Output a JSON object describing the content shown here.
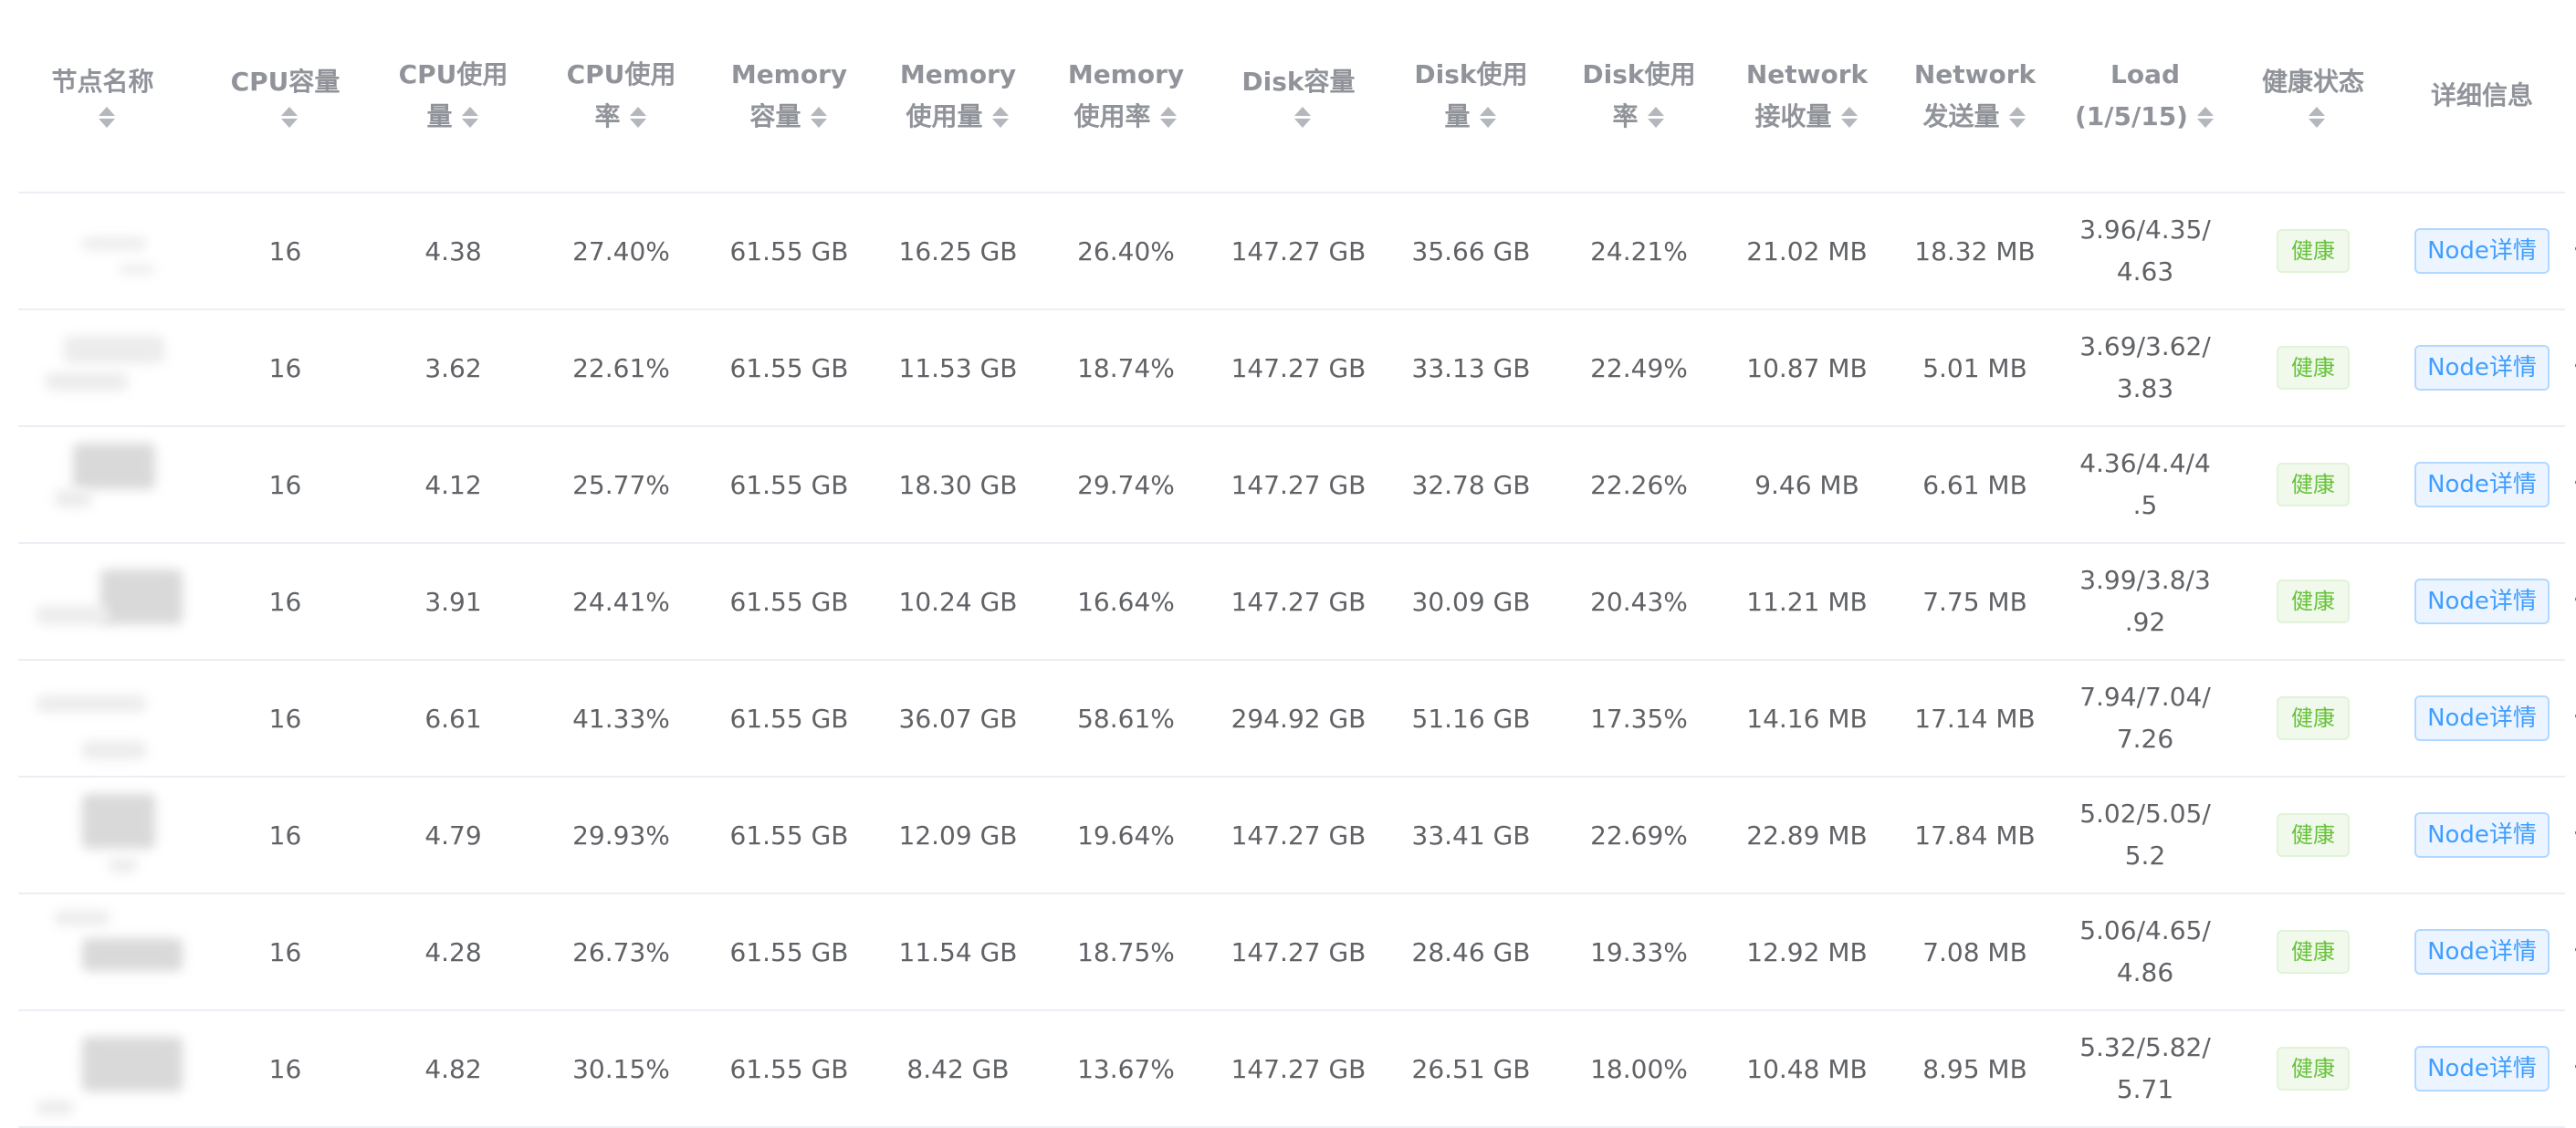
{
  "headers": {
    "node_name": [
      "节点名称"
    ],
    "cpu_capacity": [
      "CPU容量"
    ],
    "cpu_used": [
      "CPU使用",
      "量"
    ],
    "cpu_usage_rate": [
      "CPU使用",
      "率"
    ],
    "memory_capacity": [
      "Memory",
      "容量"
    ],
    "memory_used": [
      "Memory",
      "使用量"
    ],
    "memory_usage_rate": [
      "Memory",
      "使用率"
    ],
    "disk_capacity": [
      "Disk容量"
    ],
    "disk_used": [
      "Disk使用",
      "量"
    ],
    "disk_usage_rate": [
      "Disk使用",
      "率"
    ],
    "network_received": [
      "Network",
      "接收量"
    ],
    "network_sent": [
      "Network",
      "发送量"
    ],
    "load": [
      "Load",
      "(1/5/15)"
    ],
    "health_status": [
      "健康状态"
    ],
    "details": [
      "详细信息"
    ]
  },
  "rows": [
    {
      "cpu_capacity": "16",
      "cpu_used": "4.38",
      "cpu_usage_rate": "27.40%",
      "memory_capacity": "61.55 GB",
      "memory_used": "16.25 GB",
      "memory_usage_rate": "26.40%",
      "disk_capacity": "147.27 GB",
      "disk_used": "35.66 GB",
      "disk_usage_rate": "24.21%",
      "network_received": "21.02 MB",
      "network_sent": "18.32 MB",
      "load": "3.96/4.35/\n4.63",
      "health": "健康",
      "detail_button": "Node详情"
    },
    {
      "cpu_capacity": "16",
      "cpu_used": "3.62",
      "cpu_usage_rate": "22.61%",
      "memory_capacity": "61.55 GB",
      "memory_used": "11.53 GB",
      "memory_usage_rate": "18.74%",
      "disk_capacity": "147.27 GB",
      "disk_used": "33.13 GB",
      "disk_usage_rate": "22.49%",
      "network_received": "10.87 MB",
      "network_sent": "5.01 MB",
      "load": "3.69/3.62/\n3.83",
      "health": "健康",
      "detail_button": "Node详情"
    },
    {
      "cpu_capacity": "16",
      "cpu_used": "4.12",
      "cpu_usage_rate": "25.77%",
      "memory_capacity": "61.55 GB",
      "memory_used": "18.30 GB",
      "memory_usage_rate": "29.74%",
      "disk_capacity": "147.27 GB",
      "disk_used": "32.78 GB",
      "disk_usage_rate": "22.26%",
      "network_received": "9.46 MB",
      "network_sent": "6.61 MB",
      "load": "4.36/4.4/4\n.5",
      "health": "健康",
      "detail_button": "Node详情"
    },
    {
      "cpu_capacity": "16",
      "cpu_used": "3.91",
      "cpu_usage_rate": "24.41%",
      "memory_capacity": "61.55 GB",
      "memory_used": "10.24 GB",
      "memory_usage_rate": "16.64%",
      "disk_capacity": "147.27 GB",
      "disk_used": "30.09 GB",
      "disk_usage_rate": "20.43%",
      "network_received": "11.21 MB",
      "network_sent": "7.75 MB",
      "load": "3.99/3.8/3\n.92",
      "health": "健康",
      "detail_button": "Node详情"
    },
    {
      "cpu_capacity": "16",
      "cpu_used": "6.61",
      "cpu_usage_rate": "41.33%",
      "memory_capacity": "61.55 GB",
      "memory_used": "36.07 GB",
      "memory_usage_rate": "58.61%",
      "disk_capacity": "294.92 GB",
      "disk_used": "51.16 GB",
      "disk_usage_rate": "17.35%",
      "network_received": "14.16 MB",
      "network_sent": "17.14 MB",
      "load": "7.94/7.04/\n7.26",
      "health": "健康",
      "detail_button": "Node详情"
    },
    {
      "cpu_capacity": "16",
      "cpu_used": "4.79",
      "cpu_usage_rate": "29.93%",
      "memory_capacity": "61.55 GB",
      "memory_used": "12.09 GB",
      "memory_usage_rate": "19.64%",
      "disk_capacity": "147.27 GB",
      "disk_used": "33.41 GB",
      "disk_usage_rate": "22.69%",
      "network_received": "22.89 MB",
      "network_sent": "17.84 MB",
      "load": "5.02/5.05/\n5.2",
      "health": "健康",
      "detail_button": "Node详情"
    },
    {
      "cpu_capacity": "16",
      "cpu_used": "4.28",
      "cpu_usage_rate": "26.73%",
      "memory_capacity": "61.55 GB",
      "memory_used": "11.54 GB",
      "memory_usage_rate": "18.75%",
      "disk_capacity": "147.27 GB",
      "disk_used": "28.46 GB",
      "disk_usage_rate": "19.33%",
      "network_received": "12.92 MB",
      "network_sent": "7.08 MB",
      "load": "5.06/4.65/\n4.86",
      "health": "健康",
      "detail_button": "Node详情"
    },
    {
      "cpu_capacity": "16",
      "cpu_used": "4.82",
      "cpu_usage_rate": "30.15%",
      "memory_capacity": "61.55 GB",
      "memory_used": "8.42 GB",
      "memory_usage_rate": "13.67%",
      "disk_capacity": "147.27 GB",
      "disk_used": "26.51 GB",
      "disk_usage_rate": "18.00%",
      "network_received": "10.48 MB",
      "network_sent": "8.95 MB",
      "load": "5.32/5.82/\n5.71",
      "health": "健康",
      "detail_button": "Node详情"
    }
  ],
  "colors": {
    "health_badge_text": "#67c23a",
    "health_badge_bg": "#f0f9eb",
    "detail_button_text": "#409eff",
    "detail_button_bg": "#ecf5ff",
    "header_text": "#909399",
    "cell_text": "#606266",
    "row_border": "#ebeef5"
  },
  "icons": {
    "sort": "sort-caret-icon"
  }
}
